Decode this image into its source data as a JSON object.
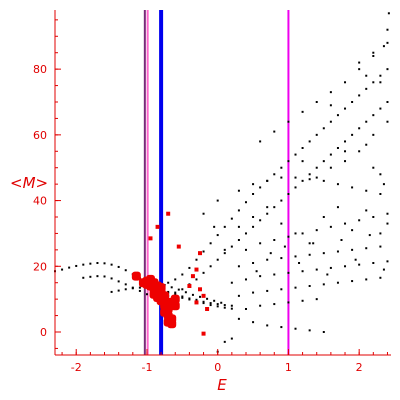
{
  "chart_data": {
    "type": "scatter",
    "title": "",
    "xlabel": "E",
    "ylabel": "<M>",
    "xlim": [
      -2.3,
      2.45
    ],
    "ylim": [
      -7,
      98
    ],
    "x_ticks": [
      -2,
      -1,
      0,
      1,
      2
    ],
    "y_ticks": [
      0,
      20,
      40,
      60,
      80
    ],
    "grid": false,
    "legend": "none",
    "colors": {
      "axis": "#e00000",
      "black_points": "#000000",
      "red_points": "#ee0000",
      "line_purple": "#7a2a7a",
      "line_pink": "#ff66cc",
      "line_blue": "#0000ee",
      "line_magenta": "#ee00ee"
    },
    "vertical_lines": [
      {
        "x": -1.03,
        "color": "#7a2a7a",
        "width": 2
      },
      {
        "x": -0.99,
        "color": "#ff66cc",
        "width": 2
      },
      {
        "x": -0.8,
        "color": "#0000ee",
        "width": 4
      },
      {
        "x": 1.0,
        "color": "#ee00ee",
        "width": 2
      }
    ],
    "series": [
      {
        "marker": "dot",
        "color": "#000000",
        "points": [
          [
            -2.3,
            18.5
          ],
          [
            -2.2,
            19
          ],
          [
            -2.1,
            19.6
          ],
          [
            -2.0,
            20.1
          ],
          [
            -1.9,
            20.5
          ],
          [
            -1.8,
            20.8
          ],
          [
            -1.7,
            21.0
          ],
          [
            -1.6,
            20.9
          ],
          [
            -1.5,
            20.5
          ],
          [
            -1.4,
            19.8
          ],
          [
            -1.3,
            18.8
          ],
          [
            -1.2,
            17.6
          ],
          [
            -1.1,
            16.4
          ],
          [
            -1.0,
            15.2
          ],
          [
            -0.9,
            14.0
          ],
          [
            -0.8,
            13.0
          ],
          [
            -0.7,
            12.2
          ],
          [
            -0.6,
            11.5
          ],
          [
            -0.5,
            10.8
          ],
          [
            -0.4,
            10.2
          ],
          [
            -0.3,
            9.8
          ],
          [
            -0.2,
            9.2
          ],
          [
            -0.1,
            8.8
          ],
          [
            0.0,
            8.5
          ],
          [
            0.1,
            8.2
          ],
          [
            0.2,
            8.0
          ],
          [
            -1.9,
            16.5
          ],
          [
            -1.8,
            16.8
          ],
          [
            -1.7,
            17.0
          ],
          [
            -1.6,
            16.9
          ],
          [
            -1.5,
            16.3
          ],
          [
            -1.4,
            15.4
          ],
          [
            -1.3,
            14.5
          ],
          [
            -1.2,
            13.5
          ],
          [
            -1.1,
            12.5
          ],
          [
            -1.0,
            11.5
          ],
          [
            -1.5,
            12.2
          ],
          [
            -1.4,
            12.6
          ],
          [
            -1.3,
            13.0
          ],
          [
            -1.2,
            13.3
          ],
          [
            -1.1,
            13.5
          ],
          [
            -1.0,
            13.8
          ],
          [
            -0.9,
            13.4
          ],
          [
            -0.8,
            12.6
          ],
          [
            -0.7,
            11.8
          ],
          [
            -0.6,
            11.0
          ],
          [
            -0.5,
            10.4
          ],
          [
            -0.4,
            9.9
          ],
          [
            -0.3,
            9.3
          ],
          [
            -0.2,
            8.8
          ],
          [
            -0.1,
            8.2
          ],
          [
            0.0,
            7.8
          ],
          [
            0.1,
            7.4
          ],
          [
            0.2,
            7.1
          ],
          [
            -0.85,
            14.8
          ],
          [
            -0.75,
            14.3
          ],
          [
            -0.65,
            13.6
          ],
          [
            -0.55,
            12.9
          ],
          [
            -0.45,
            12.1
          ],
          [
            -0.35,
            11.3
          ],
          [
            -0.25,
            10.7
          ],
          [
            -0.15,
            10.1
          ],
          [
            -0.05,
            9.5
          ],
          [
            0.05,
            8.9
          ],
          [
            -0.9,
            13
          ],
          [
            -0.8,
            14
          ],
          [
            -0.7,
            15
          ],
          [
            -0.6,
            16
          ],
          [
            -0.5,
            17.5
          ],
          [
            -0.4,
            19.5
          ],
          [
            -0.3,
            22
          ],
          [
            -0.2,
            24.5
          ],
          [
            -0.1,
            27
          ],
          [
            0.0,
            29.5
          ],
          [
            0.1,
            32
          ],
          [
            0.2,
            34.5
          ],
          [
            0.3,
            37
          ],
          [
            0.4,
            39.5
          ],
          [
            0.5,
            42
          ],
          [
            0.6,
            44
          ],
          [
            0.7,
            46
          ],
          [
            0.8,
            48
          ],
          [
            0.9,
            50
          ],
          [
            1.0,
            52
          ],
          [
            1.1,
            54
          ],
          [
            1.2,
            56
          ],
          [
            1.3,
            58
          ],
          [
            1.4,
            60
          ],
          [
            1.5,
            62
          ],
          [
            1.6,
            64
          ],
          [
            1.7,
            66
          ],
          [
            1.8,
            68
          ],
          [
            1.9,
            70
          ],
          [
            2.0,
            72
          ],
          [
            2.1,
            74
          ],
          [
            2.2,
            76
          ],
          [
            2.3,
            78
          ],
          [
            2.4,
            80
          ],
          [
            -0.7,
            11
          ],
          [
            -0.6,
            12
          ],
          [
            -0.5,
            13
          ],
          [
            -0.4,
            14.5
          ],
          [
            -0.3,
            16
          ],
          [
            -0.2,
            18
          ],
          [
            -0.1,
            20
          ],
          [
            0.0,
            22
          ],
          [
            0.1,
            24
          ],
          [
            0.2,
            26
          ],
          [
            0.3,
            28
          ],
          [
            0.4,
            30
          ],
          [
            0.5,
            32
          ],
          [
            0.6,
            34
          ],
          [
            0.7,
            36
          ],
          [
            0.8,
            38
          ],
          [
            0.9,
            40
          ],
          [
            1.0,
            42
          ],
          [
            1.1,
            44
          ],
          [
            1.2,
            46
          ],
          [
            1.3,
            48
          ],
          [
            1.4,
            50
          ],
          [
            1.5,
            52
          ],
          [
            1.6,
            54
          ],
          [
            1.7,
            56
          ],
          [
            1.8,
            58
          ],
          [
            1.9,
            60
          ],
          [
            2.0,
            62
          ],
          [
            2.1,
            64
          ],
          [
            2.2,
            66
          ],
          [
            2.3,
            68
          ],
          [
            2.4,
            70
          ],
          [
            0.6,
            58
          ],
          [
            0.8,
            61
          ],
          [
            1.0,
            64
          ],
          [
            1.2,
            67
          ],
          [
            1.4,
            70
          ],
          [
            1.6,
            73
          ],
          [
            1.8,
            76
          ],
          [
            2.0,
            80
          ],
          [
            2.2,
            84
          ],
          [
            2.35,
            87
          ],
          [
            2.4,
            92
          ],
          [
            2.42,
            97
          ],
          [
            0.3,
            43
          ],
          [
            0.5,
            45
          ],
          [
            0.7,
            46
          ],
          [
            0.9,
            47
          ],
          [
            1.1,
            47
          ],
          [
            1.3,
            46.5
          ],
          [
            1.5,
            46
          ],
          [
            1.7,
            45
          ],
          [
            1.9,
            44
          ],
          [
            2.1,
            43
          ],
          [
            2.3,
            42
          ],
          [
            0.4,
            25
          ],
          [
            0.6,
            27
          ],
          [
            0.8,
            28
          ],
          [
            1.0,
            29
          ],
          [
            1.2,
            30
          ],
          [
            1.4,
            31
          ],
          [
            1.6,
            32
          ],
          [
            1.8,
            33
          ],
          [
            2.0,
            34
          ],
          [
            2.2,
            35
          ],
          [
            2.4,
            36
          ],
          [
            0.3,
            20
          ],
          [
            0.5,
            21
          ],
          [
            0.7,
            22
          ],
          [
            0.9,
            22.5
          ],
          [
            1.1,
            23
          ],
          [
            1.3,
            23.5
          ],
          [
            1.5,
            24
          ],
          [
            1.7,
            24.5
          ],
          [
            1.9,
            25
          ],
          [
            2.1,
            25.5
          ],
          [
            2.3,
            26
          ],
          [
            0.2,
            15
          ],
          [
            0.4,
            16
          ],
          [
            0.6,
            17
          ],
          [
            0.8,
            17.5
          ],
          [
            1.0,
            18
          ],
          [
            1.2,
            18.5
          ],
          [
            1.4,
            19
          ],
          [
            1.6,
            19.5
          ],
          [
            1.8,
            20
          ],
          [
            2.0,
            20.5
          ],
          [
            2.2,
            21
          ],
          [
            2.4,
            21.5
          ],
          [
            0.3,
            11
          ],
          [
            0.5,
            12
          ],
          [
            0.7,
            12.5
          ],
          [
            0.9,
            13
          ],
          [
            1.1,
            13.5
          ],
          [
            1.3,
            14
          ],
          [
            1.5,
            14.5
          ],
          [
            1.7,
            15
          ],
          [
            1.9,
            15.5
          ],
          [
            2.1,
            16
          ],
          [
            2.3,
            16.5
          ],
          [
            0.4,
            7
          ],
          [
            0.6,
            8
          ],
          [
            0.8,
            8.5
          ],
          [
            1.0,
            9
          ],
          [
            1.2,
            9.5
          ],
          [
            1.4,
            10
          ],
          [
            0.3,
            4
          ],
          [
            0.5,
            3
          ],
          [
            0.7,
            2
          ],
          [
            0.9,
            1.5
          ],
          [
            1.1,
            1
          ],
          [
            1.3,
            0.5
          ],
          [
            1.5,
            0
          ],
          [
            0.2,
            -2
          ],
          [
            0.1,
            -3
          ],
          [
            0.0,
            -6
          ],
          [
            0.3,
            32
          ],
          [
            0.5,
            35
          ],
          [
            0.7,
            38
          ],
          [
            0.9,
            33
          ],
          [
            1.1,
            30
          ],
          [
            1.3,
            27
          ],
          [
            1.5,
            35
          ],
          [
            1.7,
            38
          ],
          [
            1.9,
            31
          ],
          [
            2.1,
            37
          ],
          [
            2.3,
            30
          ],
          [
            2.4,
            33
          ],
          [
            0.55,
            18.5
          ],
          [
            0.75,
            24
          ],
          [
            0.95,
            26
          ],
          [
            1.15,
            21
          ],
          [
            1.35,
            27
          ],
          [
            1.55,
            17.5
          ],
          [
            1.75,
            28
          ],
          [
            1.95,
            22
          ],
          [
            2.15,
            29.5
          ],
          [
            2.35,
            19
          ],
          [
            -0.2,
            36
          ],
          [
            0.0,
            40
          ],
          [
            0.1,
            25
          ],
          [
            -0.05,
            32
          ],
          [
            1.8,
            52
          ],
          [
            2.0,
            55
          ],
          [
            2.1,
            57
          ],
          [
            2.2,
            50
          ],
          [
            2.3,
            48
          ],
          [
            2.35,
            45
          ],
          [
            2.0,
            82
          ],
          [
            2.2,
            85
          ],
          [
            2.3,
            76
          ],
          [
            2.4,
            88
          ],
          [
            2.1,
            78
          ],
          [
            1.6,
            69
          ],
          [
            1.2,
            52
          ],
          [
            1.4,
            47
          ],
          [
            1.6,
            50
          ],
          [
            1.8,
            55
          ],
          [
            2.2,
            60
          ],
          [
            2.4,
            64
          ]
        ]
      },
      {
        "marker": "square",
        "color": "#ee0000",
        "points": [
          [
            -1.15,
            17
          ],
          [
            -1.05,
            15
          ],
          [
            -1.0,
            15.5
          ],
          [
            -0.95,
            16
          ],
          [
            -0.9,
            15
          ],
          [
            -0.95,
            14
          ],
          [
            -1.0,
            14.5
          ],
          [
            -0.9,
            13
          ],
          [
            -0.85,
            14
          ],
          [
            -0.8,
            13.5
          ],
          [
            -0.85,
            12
          ],
          [
            -0.9,
            11.5
          ],
          [
            -0.8,
            12
          ],
          [
            -0.75,
            11
          ],
          [
            -0.8,
            10
          ],
          [
            -0.85,
            10.5
          ],
          [
            -0.7,
            9
          ],
          [
            -0.75,
            8
          ],
          [
            -0.8,
            9.5
          ],
          [
            -0.7,
            7
          ],
          [
            -0.75,
            6
          ],
          [
            -0.7,
            5
          ],
          [
            -0.65,
            4
          ],
          [
            -0.7,
            3
          ],
          [
            -0.65,
            2.5
          ],
          [
            -0.6,
            8
          ],
          [
            -0.65,
            9
          ],
          [
            -0.6,
            10
          ],
          [
            -0.95,
            28.5
          ],
          [
            -0.85,
            32
          ],
          [
            -0.7,
            36
          ],
          [
            -0.55,
            26
          ],
          [
            -0.35,
            17
          ],
          [
            -0.3,
            19
          ],
          [
            -0.25,
            24
          ],
          [
            -0.2,
            11
          ],
          [
            -0.25,
            13
          ],
          [
            -0.15,
            7
          ],
          [
            -0.3,
            9
          ],
          [
            -0.2,
            -0.5
          ],
          [
            -0.4,
            14
          ]
        ]
      }
    ]
  }
}
